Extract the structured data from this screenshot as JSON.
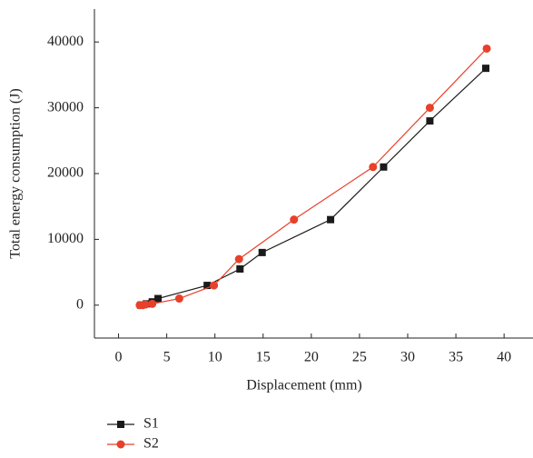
{
  "chart_data": {
    "type": "line",
    "x_label": "Displacement (mm)",
    "y_label": "Total energy consumption (J)",
    "xlim": [
      -2.5,
      43
    ],
    "xticks": [
      0,
      5,
      10,
      15,
      20,
      25,
      30,
      35,
      40
    ],
    "ylim": [
      -5000,
      45000
    ],
    "yticks": [
      0,
      10000,
      20000,
      30000,
      40000
    ],
    "series": [
      {
        "name": "S1",
        "color": "#1a1a1a",
        "marker": "square",
        "x": [
          2.3,
          2.9,
          3.5,
          4.1,
          9.2,
          12.6,
          14.9,
          22,
          27.5,
          32.3,
          38.1
        ],
        "values": [
          0,
          200,
          500,
          1000,
          3000,
          5500,
          8000,
          13000,
          21000,
          28000,
          36000
        ]
      },
      {
        "name": "S2",
        "color": "#e8402a",
        "marker": "circle",
        "x": [
          2.2,
          2.5,
          2.8,
          3.5,
          6.3,
          9.9,
          12.5,
          18.2,
          26.4,
          32.3,
          38.2
        ],
        "values": [
          0,
          0,
          100,
          200,
          1000,
          3000,
          7000,
          13000,
          21000,
          30000,
          39000
        ]
      }
    ]
  }
}
